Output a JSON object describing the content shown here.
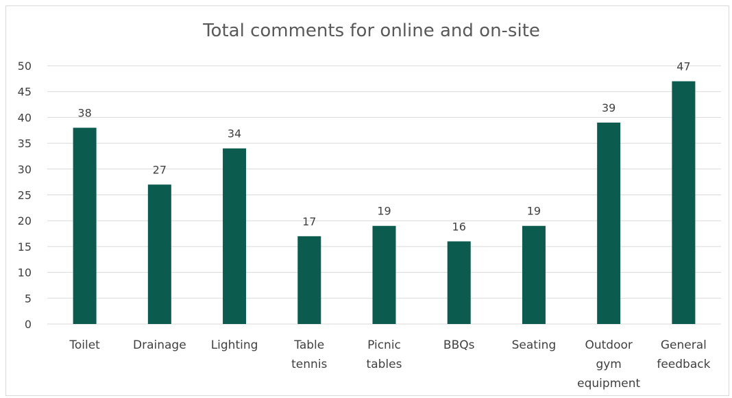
{
  "chart_data": {
    "type": "bar",
    "title": "Total comments for online and on-site",
    "xlabel": "",
    "ylabel": "",
    "categories": [
      [
        "Toilet"
      ],
      [
        "Drainage"
      ],
      [
        "Lighting"
      ],
      [
        "Table",
        "tennis"
      ],
      [
        "Picnic",
        "tables"
      ],
      [
        "BBQs"
      ],
      [
        "Seating"
      ],
      [
        "Outdoor",
        "gym",
        "equipment"
      ],
      [
        "General",
        "feedback"
      ]
    ],
    "values": [
      38,
      27,
      34,
      17,
      19,
      16,
      19,
      39,
      47
    ],
    "ylim": [
      0,
      50
    ],
    "yticks": [
      0,
      5,
      10,
      15,
      20,
      25,
      30,
      35,
      40,
      45,
      50
    ],
    "grid": true,
    "data_labels": true,
    "bar_color": "#0b5c4e",
    "grid_color": "#d9d9d9"
  }
}
